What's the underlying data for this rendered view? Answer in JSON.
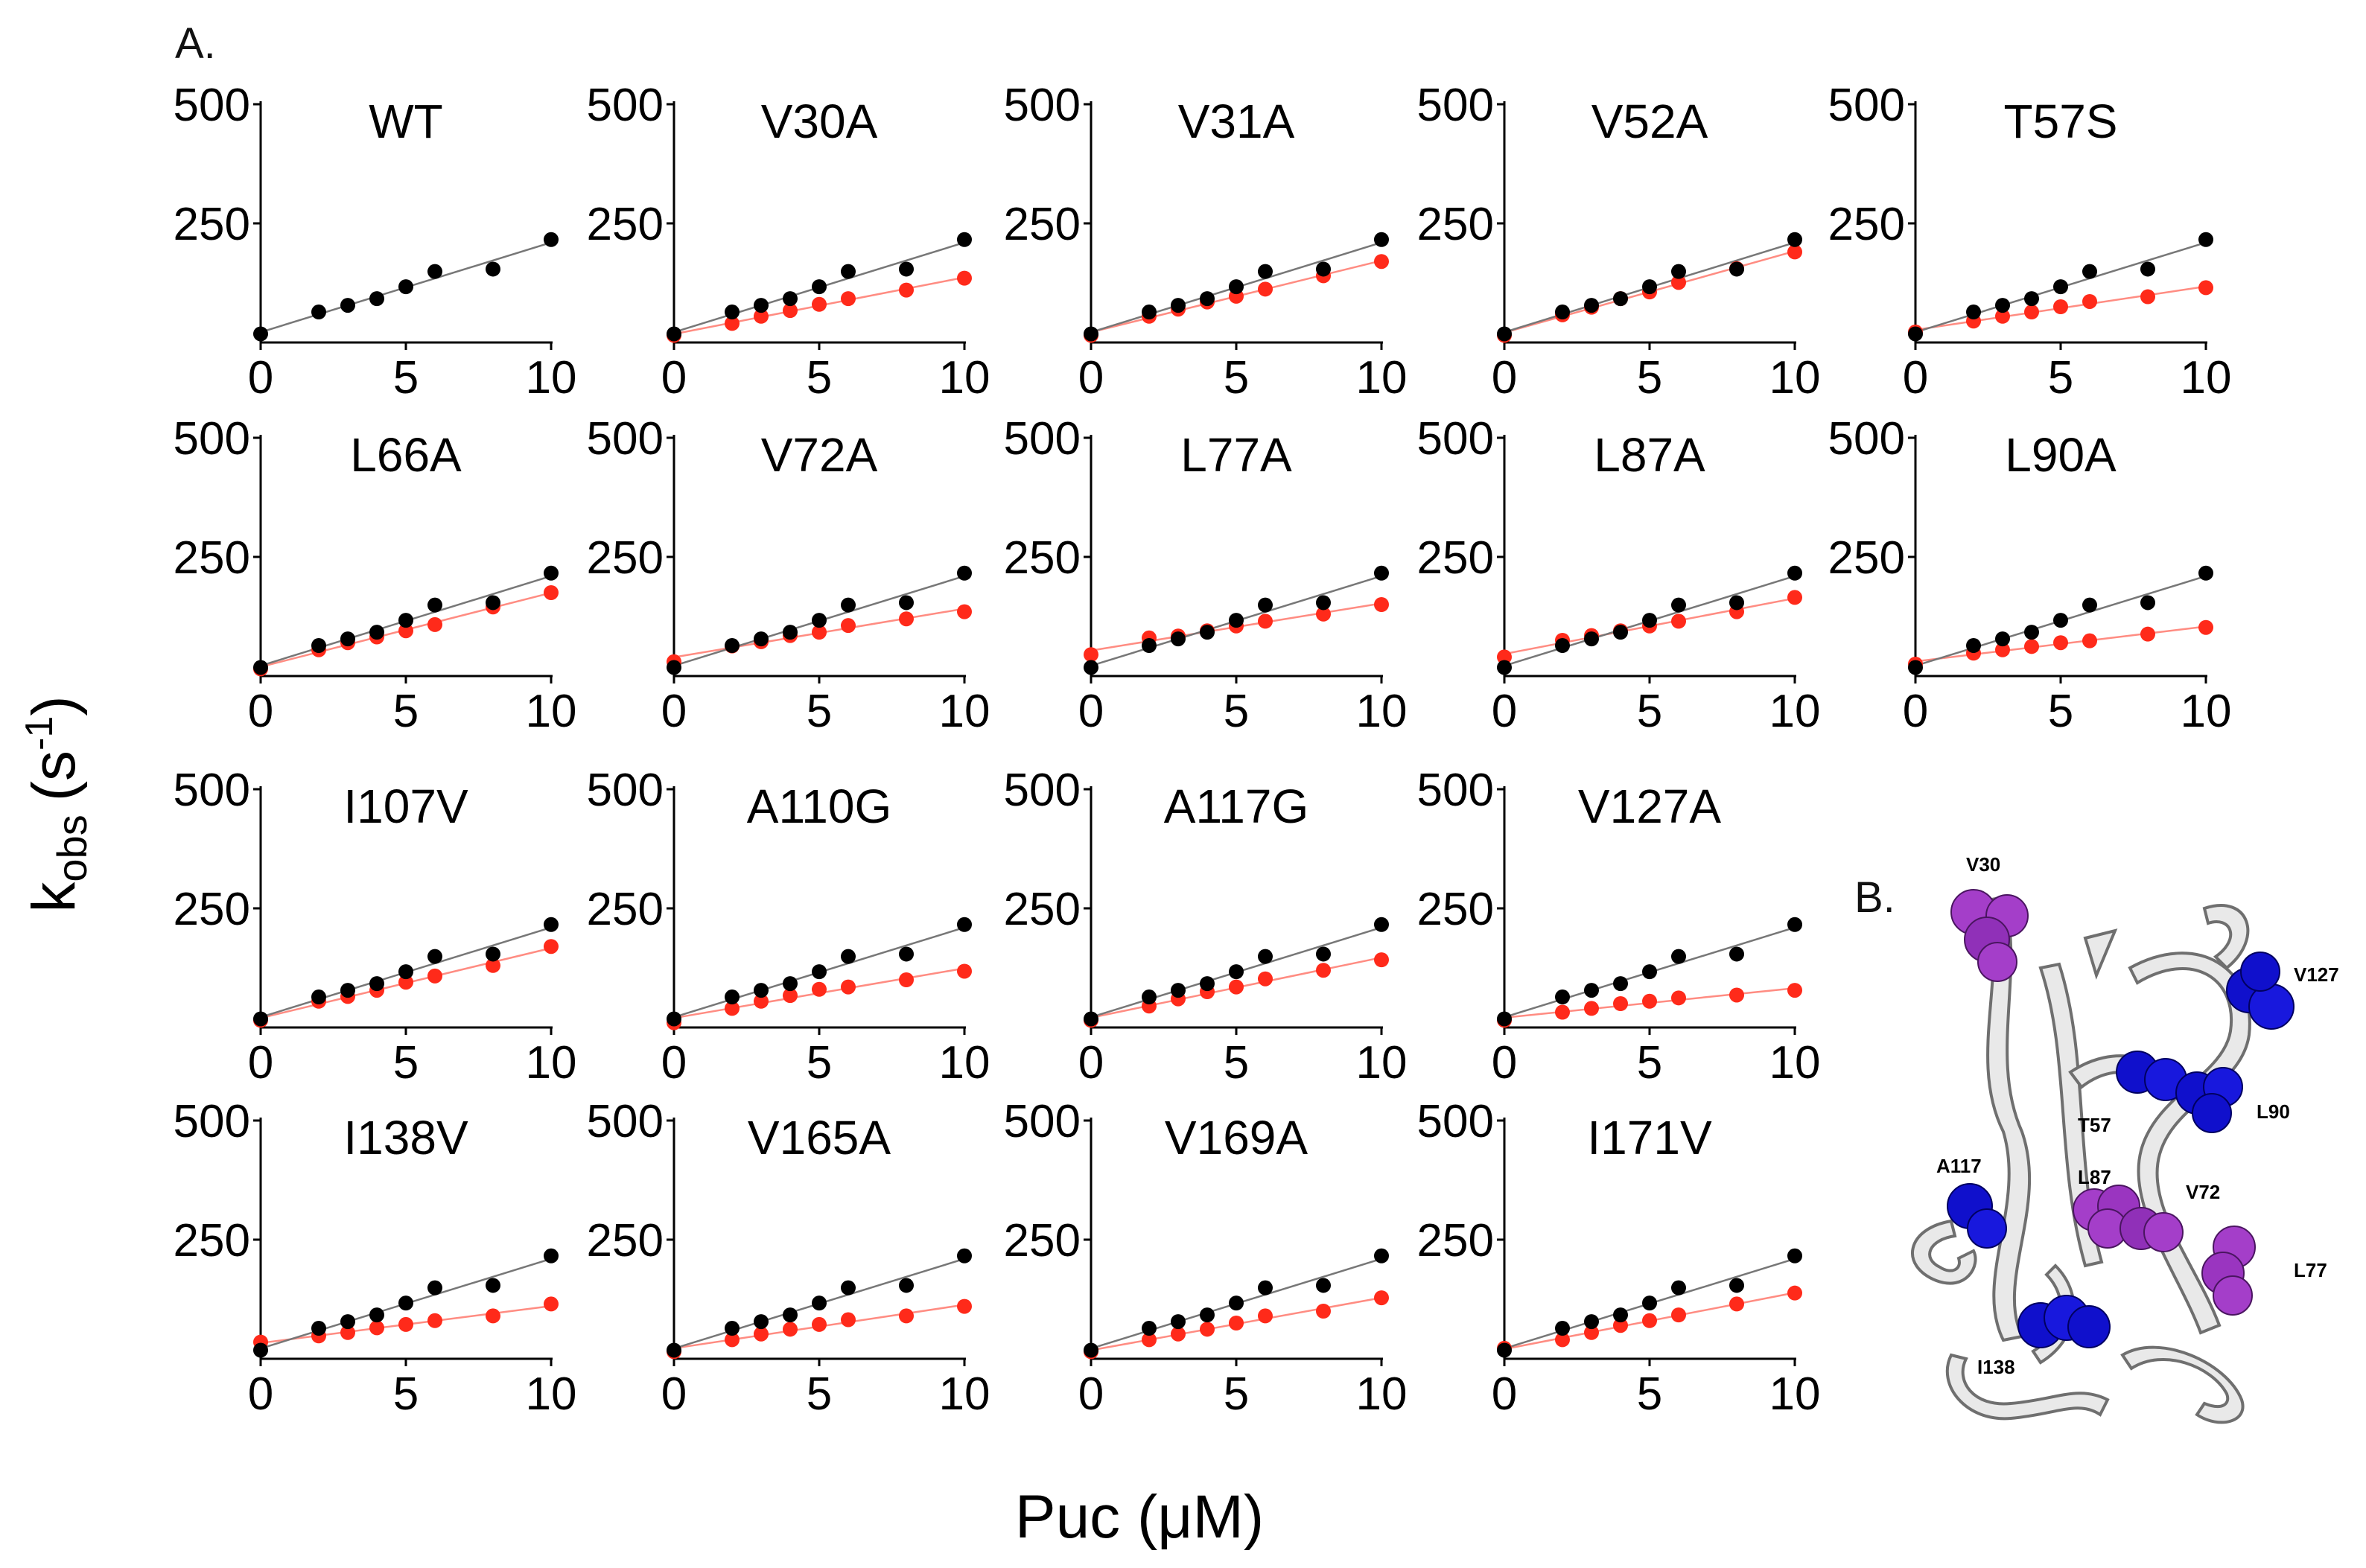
{
  "panel_labels": {
    "a": "A.",
    "b": "B."
  },
  "axis_labels": {
    "y_main": "k",
    "y_sub": "obs",
    "y_units_open": "(s",
    "y_sup": "-1",
    "y_units_close": ")",
    "x": "Puc (μM)"
  },
  "colors": {
    "wt": "#000000",
    "mutant": "#ff2a1a",
    "wt_fit": "#777777",
    "mutant_fit": "#ff8c82"
  },
  "chart_data": {
    "type": "scatter",
    "layout": "small-multiples 5+5+4+4",
    "xlim": [
      0,
      10
    ],
    "ylim": [
      0,
      500
    ],
    "x_ticks": [
      0,
      5,
      10
    ],
    "y_ticks": [
      250,
      500
    ],
    "x_label": "Puc (μM)",
    "y_label": "kobs (s-1)",
    "wt_series": {
      "name": "WT",
      "x": [
        0,
        2,
        3,
        4,
        5,
        6,
        8,
        10
      ],
      "y": [
        18,
        64,
        78,
        92,
        117,
        149,
        154,
        216
      ]
    },
    "mutant_x": [
      0,
      2,
      3,
      4,
      5,
      6,
      8,
      10
    ],
    "panels": [
      {
        "title": "WT",
        "mutant": null
      },
      {
        "title": "V30A",
        "mutant": [
          15,
          40,
          55,
          67,
          80,
          92,
          110,
          135
        ]
      },
      {
        "title": "V31A",
        "mutant": [
          15,
          55,
          70,
          85,
          97,
          112,
          140,
          170
        ]
      },
      {
        "title": "V52A",
        "mutant": [
          15,
          58,
          74,
          92,
          106,
          126,
          155,
          190
        ]
      },
      {
        "title": "T57S",
        "mutant": [
          22,
          45,
          55,
          64,
          75,
          86,
          96,
          115
        ]
      },
      {
        "title": "L66A",
        "mutant": [
          15,
          55,
          70,
          82,
          95,
          108,
          145,
          175
        ]
      },
      {
        "title": "V72A",
        "mutant": [
          30,
          63,
          72,
          85,
          92,
          106,
          120,
          135
        ]
      },
      {
        "title": "L77A",
        "mutant": [
          45,
          80,
          84,
          95,
          105,
          115,
          130,
          150
        ]
      },
      {
        "title": "L87A",
        "mutant": [
          40,
          75,
          85,
          95,
          105,
          115,
          135,
          165
        ]
      },
      {
        "title": "L90A",
        "mutant": [
          25,
          48,
          55,
          62,
          70,
          74,
          88,
          102
        ]
      },
      {
        "title": "I107V",
        "mutant": [
          15,
          55,
          65,
          78,
          95,
          108,
          130,
          170
        ]
      },
      {
        "title": "A110G",
        "mutant": [
          10,
          40,
          55,
          67,
          80,
          85,
          100,
          118
        ]
      },
      {
        "title": "A117G",
        "mutant": [
          15,
          45,
          60,
          75,
          85,
          102,
          120,
          142
        ]
      },
      {
        "title": "V127A",
        "mutant": [
          15,
          32,
          40,
          50,
          55,
          62,
          68,
          78
        ]
      },
      {
        "title": "I138V",
        "mutant": [
          35,
          48,
          55,
          65,
          72,
          80,
          90,
          115
        ]
      },
      {
        "title": "V165A",
        "mutant": [
          15,
          40,
          52,
          62,
          72,
          82,
          90,
          110
        ]
      },
      {
        "title": "V169A",
        "mutant": [
          15,
          40,
          52,
          62,
          75,
          90,
          100,
          128
        ]
      },
      {
        "title": "I171V",
        "mutant": [
          22,
          40,
          55,
          70,
          80,
          92,
          115,
          138
        ]
      }
    ]
  },
  "structure_labels": [
    "V30",
    "V127",
    "T57",
    "L90",
    "A117",
    "L87",
    "V72",
    "L77",
    "I138"
  ]
}
